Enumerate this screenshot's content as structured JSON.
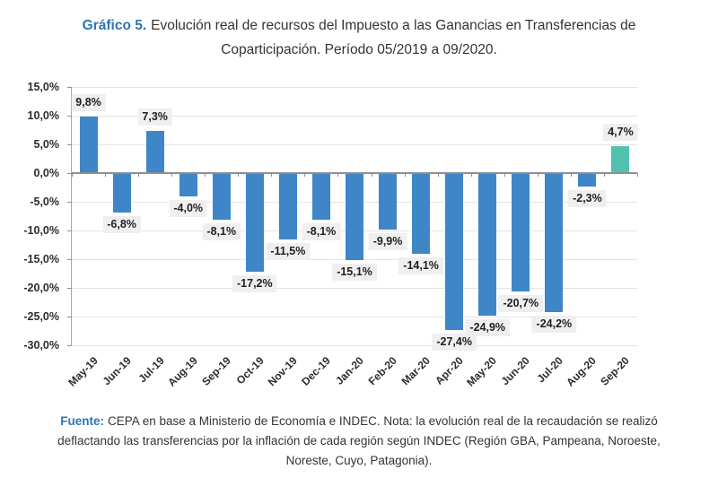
{
  "title": {
    "label": "Gráfico 5.",
    "line1_rest": "Evolución real de recursos del Impuesto a las Ganancias en Transferencias de",
    "line2": "Coparticipación. Período 05/2019 a 09/2020."
  },
  "footer": {
    "label": "Fuente:",
    "line1_rest": "CEPA en base a Ministerio de Economía e INDEC. Nota: la evolución real de la recaudación se realizó",
    "line2": "deflactando las transferencias por la inflación de cada región según INDEC (Región GBA, Pampeana, Noroeste,",
    "line3": "Noreste, Cuyo, Patagonia)."
  },
  "chart_data": {
    "type": "bar",
    "title": "Evolución real de recursos del Impuesto a las Ganancias en Transferencias de Coparticipación. Período 05/2019 a 09/2020.",
    "categories": [
      "May-19",
      "Jun-19",
      "Jul-19",
      "Aug-19",
      "Sep-19",
      "Oct-19",
      "Nov-19",
      "Dec-19",
      "Jan-20",
      "Feb-20",
      "Mar-20",
      "Apr-20",
      "May-20",
      "Jun-20",
      "Jul-20",
      "Aug-20",
      "Sep-20"
    ],
    "values": [
      9.8,
      -6.8,
      7.3,
      -4.0,
      -8.1,
      -17.2,
      -11.5,
      -8.1,
      -15.1,
      -9.9,
      -14.1,
      -27.4,
      -24.9,
      -20.7,
      -24.2,
      -2.3,
      4.7
    ],
    "value_labels": [
      "9,8%",
      "-6,8%",
      "7,3%",
      "-4,0%",
      "-8,1%",
      "-17,2%",
      "-11,5%",
      "-8,1%",
      "-15,1%",
      "-9,9%",
      "-14,1%",
      "-27,4%",
      "-24,9%",
      "-20,7%",
      "-24,2%",
      "-2,3%",
      "4,7%"
    ],
    "y_tick_labels": [
      "15,0%",
      "10,0%",
      "5,0%",
      "0,0%",
      "-5,0%",
      "-10,0%",
      "-15,0%",
      "-20,0%",
      "-25,0%",
      "-30,0%"
    ],
    "y_tick_values": [
      15,
      10,
      5,
      0,
      -5,
      -10,
      -15,
      -20,
      -25,
      -30
    ],
    "ylim": [
      -30,
      15
    ],
    "grid": true,
    "legend_position": "none",
    "xlabel": "",
    "ylabel": "",
    "bar_color_default": "#3E86C7",
    "bar_color_highlight": "#52C0AE",
    "highlight_index": 16
  },
  "colors": {
    "accent_blue": "#2E74B5",
    "label_background": "#EFEFEF",
    "gridline": "#E4E4E4",
    "axis": "#8F8F8F"
  }
}
